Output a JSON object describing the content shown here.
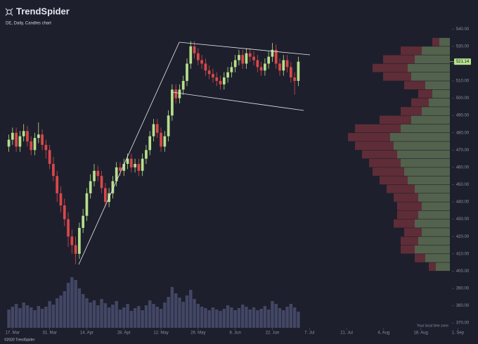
{
  "logo": "TrendSpider",
  "subtitle": "DE, Daily, Candles chart",
  "timezone_note": "Your local time zone",
  "copyright": "©2020 TrendSpider",
  "chart_data": {
    "type": "candlestick",
    "up_color": "#b6e08c",
    "down_color": "#d9484c",
    "volume_color": "#4a4f70",
    "last_price": 521.14,
    "open": [
      472,
      476,
      480,
      472,
      478,
      481,
      475,
      470,
      477,
      479,
      473,
      470,
      462,
      455,
      445,
      438,
      430,
      420,
      415,
      410,
      425,
      432,
      445,
      452,
      458,
      455,
      448,
      440,
      445,
      452,
      460,
      458,
      462,
      465,
      460,
      462,
      458,
      465,
      470,
      478,
      485,
      480,
      472,
      478,
      490,
      505,
      500,
      505,
      510,
      520,
      530,
      526,
      522,
      520,
      516,
      514,
      512,
      510,
      508,
      512,
      515,
      518,
      522,
      525,
      520,
      526,
      524,
      522,
      518,
      516,
      520,
      524,
      528,
      520,
      516,
      522,
      518,
      512,
      510
    ],
    "high": [
      479,
      483,
      483,
      481,
      485,
      484,
      478,
      480,
      486,
      482,
      476,
      473,
      466,
      458,
      449,
      442,
      434,
      424,
      420,
      428,
      436,
      448,
      456,
      462,
      461,
      458,
      451,
      448,
      455,
      463,
      463,
      465,
      468,
      468,
      465,
      465,
      468,
      473,
      481,
      488,
      488,
      483,
      481,
      493,
      508,
      508,
      508,
      513,
      523,
      533,
      533,
      529,
      525,
      523,
      519,
      517,
      515,
      513,
      515,
      518,
      521,
      525,
      528,
      528,
      529,
      529,
      527,
      525,
      521,
      523,
      527,
      532,
      531,
      523,
      525,
      525,
      521,
      515,
      524
    ],
    "low": [
      469,
      473,
      469,
      469,
      475,
      472,
      467,
      467,
      474,
      470,
      465,
      459,
      452,
      440,
      434,
      426,
      414,
      410,
      404,
      407,
      422,
      429,
      442,
      449,
      452,
      445,
      437,
      437,
      442,
      449,
      455,
      455,
      459,
      457,
      457,
      455,
      455,
      462,
      467,
      475,
      477,
      469,
      469,
      475,
      487,
      497,
      497,
      502,
      507,
      517,
      523,
      519,
      517,
      513,
      511,
      509,
      507,
      505,
      505,
      509,
      512,
      515,
      519,
      517,
      517,
      521,
      519,
      515,
      513,
      513,
      517,
      521,
      517,
      513,
      513,
      515,
      509,
      502,
      507
    ],
    "close": [
      476,
      480,
      472,
      478,
      481,
      475,
      470,
      477,
      479,
      473,
      470,
      462,
      455,
      445,
      438,
      430,
      420,
      415,
      410,
      425,
      432,
      445,
      452,
      458,
      455,
      448,
      440,
      445,
      452,
      460,
      458,
      462,
      465,
      460,
      462,
      458,
      465,
      470,
      478,
      485,
      480,
      472,
      478,
      490,
      505,
      500,
      505,
      510,
      520,
      530,
      526,
      522,
      520,
      516,
      514,
      512,
      510,
      508,
      512,
      515,
      518,
      522,
      525,
      520,
      526,
      524,
      522,
      518,
      516,
      520,
      524,
      528,
      520,
      516,
      522,
      518,
      512,
      510,
      521.14
    ],
    "volume": [
      2.6,
      3.0,
      3.4,
      2.8,
      3.6,
      3.2,
      2.9,
      2.5,
      3.1,
      2.7,
      3.0,
      3.8,
      3.3,
      4.2,
      4.6,
      5.2,
      6.4,
      7.2,
      6.8,
      5.6,
      4.8,
      4.2,
      3.6,
      3.9,
      3.2,
      4.1,
      3.5,
      2.9,
      3.3,
      3.8,
      2.6,
      2.9,
      3.4,
      2.4,
      2.8,
      3.1,
      2.5,
      3.2,
      3.9,
      3.4,
      3.0,
      2.7,
      3.6,
      4.4,
      5.8,
      4.9,
      4.3,
      3.7,
      4.6,
      5.4,
      4.1,
      3.4,
      3.0,
      2.8,
      2.5,
      2.9,
      2.6,
      2.4,
      2.7,
      3.2,
      2.9,
      2.5,
      2.8,
      3.3,
      3.0,
      2.6,
      2.9,
      2.5,
      2.7,
      3.1,
      2.6,
      3.8,
      3.4,
      2.8,
      2.5,
      3.0,
      3.4,
      2.9,
      2.3
    ],
    "profile": {
      "levels": [
        402.5,
        407.5,
        412.5,
        417.5,
        422.5,
        427.5,
        432.5,
        437.5,
        442.5,
        447.5,
        452.5,
        457.5,
        462.5,
        467.5,
        472.5,
        477.5,
        482.5,
        487.5,
        492.5,
        497.5,
        502.5,
        507.5,
        512.5,
        517.5,
        522.5,
        527.5,
        532.5
      ],
      "up": [
        20,
        35,
        50,
        45,
        40,
        50,
        45,
        40,
        45,
        50,
        60,
        65,
        70,
        75,
        80,
        85,
        70,
        55,
        40,
        30,
        25,
        35,
        55,
        60,
        50,
        40,
        15
      ],
      "down": [
        10,
        15,
        20,
        25,
        25,
        30,
        30,
        35,
        35,
        40,
        40,
        45,
        45,
        50,
        55,
        60,
        65,
        45,
        30,
        25,
        20,
        30,
        40,
        50,
        45,
        30,
        10
      ]
    },
    "ylim": [
      368,
      545
    ],
    "yticks": [
      {
        "value": 370,
        "label": "370.00"
      },
      {
        "value": 380,
        "label": "380.00"
      },
      {
        "value": 390,
        "label": "390.00"
      },
      {
        "value": 400,
        "label": "400.00"
      },
      {
        "value": 410,
        "label": "410.00"
      },
      {
        "value": 420,
        "label": "420.00"
      },
      {
        "value": 430,
        "label": "430.00"
      },
      {
        "value": 440,
        "label": "440.00"
      },
      {
        "value": 450,
        "label": "450.00"
      },
      {
        "value": 460,
        "label": "460.00"
      },
      {
        "value": 470,
        "label": "470.00"
      },
      {
        "value": 480,
        "label": "480.00"
      },
      {
        "value": 490,
        "label": "490.00"
      },
      {
        "value": 500,
        "label": "500.00"
      },
      {
        "value": 510,
        "label": "510.00"
      },
      {
        "value": 520,
        "label": "520.00"
      },
      {
        "value": 530,
        "label": "530.00"
      },
      {
        "value": 540,
        "label": "540.00"
      }
    ],
    "xlim": [
      -2,
      123
    ],
    "xticks": [
      {
        "value": 1,
        "label": "17. Mar"
      },
      {
        "value": 11,
        "label": "31. Mar"
      },
      {
        "value": 21,
        "label": "14. Apr"
      },
      {
        "value": 31,
        "label": "28. Apr"
      },
      {
        "value": 41,
        "label": "12. May"
      },
      {
        "value": 51,
        "label": "26. May"
      },
      {
        "value": 61,
        "label": "8. Jun"
      },
      {
        "value": 71,
        "label": "22. Jun"
      },
      {
        "value": 81,
        "label": "7. Jul"
      },
      {
        "value": 91,
        "label": "21. Jul"
      },
      {
        "value": 101,
        "label": "4. Aug"
      },
      {
        "value": 111,
        "label": "18. Aug"
      },
      {
        "value": 121,
        "label": "1. Sep"
      }
    ]
  }
}
